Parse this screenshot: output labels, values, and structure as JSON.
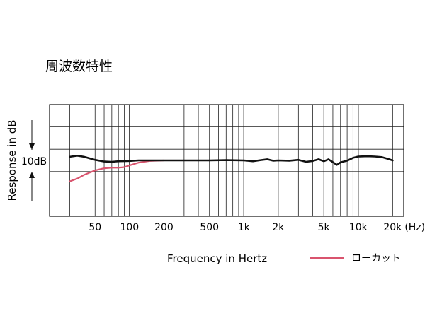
{
  "chart_data": {
    "type": "line",
    "title": "周波数特性",
    "xlabel": "Frequency in Hertz",
    "ylabel": "Response in dB",
    "scale_label": "10dB",
    "x_scale": "log",
    "xlim": [
      20,
      25000
    ],
    "ylim": [
      -20,
      20
    ],
    "grid": true,
    "x_tick_labels": [
      {
        "value": 50,
        "label": "50"
      },
      {
        "value": 100,
        "label": "100"
      },
      {
        "value": 200,
        "label": "200"
      },
      {
        "value": 500,
        "label": "500"
      },
      {
        "value": 1000,
        "label": "1k"
      },
      {
        "value": 2000,
        "label": "2k"
      },
      {
        "value": 5000,
        "label": "5k"
      },
      {
        "value": 10000,
        "label": "10k"
      },
      {
        "value": 20000,
        "label": "20k"
      }
    ],
    "x_unit_label": "(Hz)",
    "legend_position": "bottom-right",
    "series": [
      {
        "color": "#111111",
        "x": [
          30,
          35,
          40,
          50,
          60,
          70,
          80,
          100,
          120,
          150,
          200,
          300,
          500,
          700,
          1000,
          1200,
          1400,
          1600,
          1800,
          2000,
          2500,
          3000,
          3500,
          4000,
          4500,
          5000,
          5500,
          6000,
          6500,
          7000,
          8000,
          9000,
          10000,
          12000,
          14000,
          16000,
          18000,
          20000
        ],
        "y": [
          1.3,
          1.7,
          1.3,
          0.2,
          -0.4,
          -0.5,
          -0.3,
          -0.2,
          0,
          0,
          0,
          0,
          0,
          0.1,
          0,
          -0.3,
          0.1,
          0.4,
          -0.1,
          0,
          -0.1,
          0.2,
          -0.5,
          -0.2,
          0.4,
          -0.3,
          0.4,
          -0.6,
          -1.6,
          -0.7,
          -0.1,
          0.9,
          1.4,
          1.5,
          1.4,
          1.2,
          0.6,
          0
        ]
      },
      {
        "name": "ローカット",
        "color": "#d9546e",
        "x": [
          30,
          35,
          40,
          50,
          60,
          70,
          80,
          90,
          100,
          120,
          150,
          200
        ],
        "y": [
          -7.5,
          -6.5,
          -5.2,
          -3.6,
          -2.8,
          -2.6,
          -2.6,
          -2.4,
          -1.8,
          -0.8,
          -0.2,
          0
        ]
      }
    ]
  }
}
